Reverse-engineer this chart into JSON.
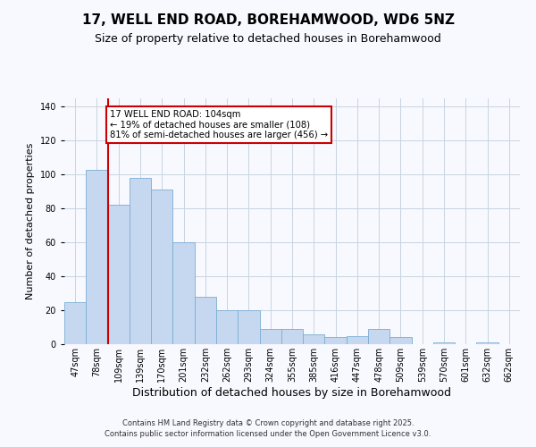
{
  "title": "17, WELL END ROAD, BOREHAMWOOD, WD6 5NZ",
  "subtitle": "Size of property relative to detached houses in Borehamwood",
  "xlabel": "Distribution of detached houses by size in Borehamwood",
  "ylabel": "Number of detached properties",
  "categories": [
    "47sqm",
    "78sqm",
    "109sqm",
    "139sqm",
    "170sqm",
    "201sqm",
    "232sqm",
    "262sqm",
    "293sqm",
    "324sqm",
    "355sqm",
    "385sqm",
    "416sqm",
    "447sqm",
    "478sqm",
    "509sqm",
    "539sqm",
    "570sqm",
    "601sqm",
    "632sqm",
    "662sqm"
  ],
  "values": [
    25,
    103,
    82,
    98,
    91,
    60,
    28,
    20,
    20,
    9,
    9,
    6,
    4,
    5,
    9,
    4,
    0,
    1,
    0,
    1,
    0
  ],
  "bar_color": "#c5d8f0",
  "bar_edge_color": "#7aadd4",
  "vline_color": "#cc0000",
  "vline_x_index": 1,
  "ylim": [
    0,
    145
  ],
  "yticks": [
    0,
    20,
    40,
    60,
    80,
    100,
    120,
    140
  ],
  "annotation_text": "17 WELL END ROAD: 104sqm\n← 19% of detached houses are smaller (108)\n81% of semi-detached houses are larger (456) →",
  "annotation_box_facecolor": "#ffffff",
  "annotation_box_edgecolor": "#cc0000",
  "footer_line1": "Contains HM Land Registry data © Crown copyright and database right 2025.",
  "footer_line2": "Contains public sector information licensed under the Open Government Licence v3.0.",
  "background_color": "#f8f8ff",
  "grid_color": "#c8d4e0",
  "title_fontsize": 11,
  "subtitle_fontsize": 9,
  "xlabel_fontsize": 9,
  "ylabel_fontsize": 8,
  "tick_fontsize": 7,
  "footer_fontsize": 6
}
